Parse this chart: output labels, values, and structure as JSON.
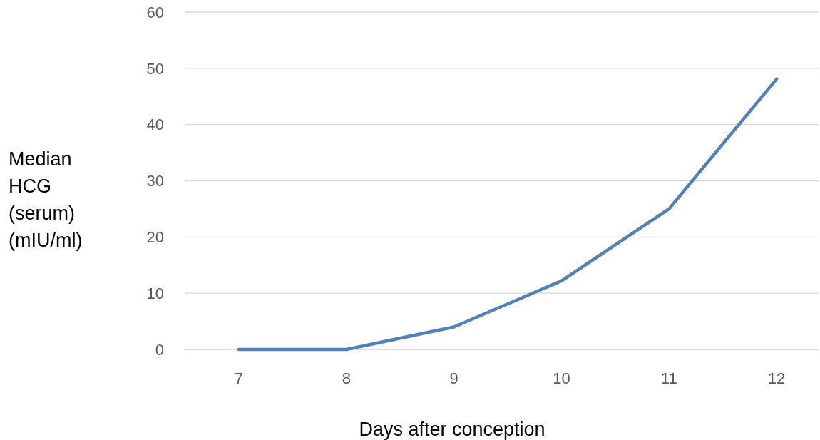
{
  "chart_data": {
    "type": "line",
    "xlabel": "Days after conception",
    "ylabel": "Median HCG (serum) (mIU/ml)",
    "categories": [
      "7",
      "8",
      "9",
      "10",
      "11",
      "12"
    ],
    "series": [
      {
        "color": "#4f81bd",
        "values": [
          0,
          0,
          4,
          12.2,
          25,
          48.1
        ]
      }
    ],
    "ylim": [
      0,
      60
    ],
    "yticks": [
      0,
      10,
      20,
      30,
      40,
      50,
      60
    ],
    "grid": "y",
    "marker": "none",
    "line_style": "solid"
  }
}
